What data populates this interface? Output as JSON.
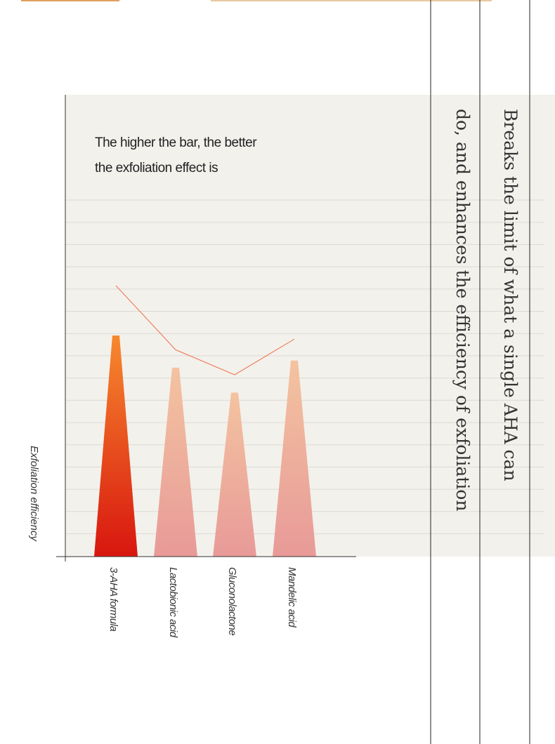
{
  "chart_data": {
    "type": "bar",
    "heading": [
      "Breaks the limit of what a single AHA can",
      "do, and enhances the efficiency of exfoliation"
    ],
    "annotation": [
      "The higher the bar, the better",
      "the exfoliation effect is"
    ],
    "y_label": "Exfoliation efficiency",
    "categories": [
      "3-AHA formula",
      "Lactobionic acid",
      "Gluconolactone",
      "Mandelic acid"
    ],
    "values": [
      62,
      53,
      46,
      55
    ],
    "line_values": [
      76,
      58,
      51,
      61
    ],
    "colors": [
      "#e8401c",
      "#eeaf9c",
      "#eeaf9c",
      "#eeaf9c"
    ],
    "line_color": "#f06a44",
    "ylim": [
      0,
      100
    ]
  }
}
